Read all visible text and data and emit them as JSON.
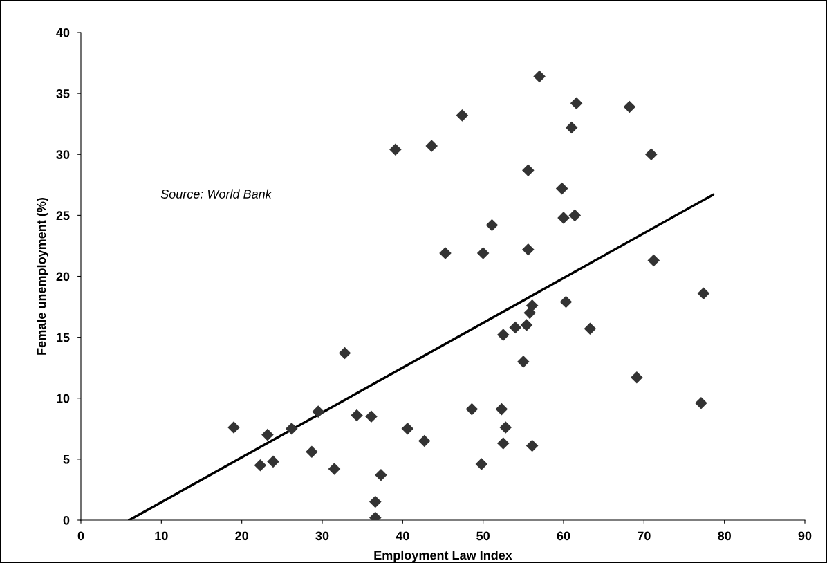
{
  "chart_data": {
    "type": "scatter",
    "xlabel": "Employment Law Index",
    "ylabel": "Female unemployment (%)",
    "annotations": [
      "Source: World Bank"
    ],
    "xlim": [
      0,
      90
    ],
    "xticks": [
      0,
      10,
      20,
      30,
      40,
      50,
      60,
      70,
      80,
      90
    ],
    "ylim": [
      0,
      40
    ],
    "yticks": [
      0,
      5,
      10,
      15,
      20,
      25,
      30,
      35,
      40
    ],
    "grid": false,
    "legend": false,
    "marker": "diamond",
    "series": [
      {
        "color": "#333333",
        "x": [
          19.0,
          22.3,
          23.2,
          23.9,
          26.2,
          28.7,
          29.5,
          31.5,
          32.8,
          34.3,
          36.1,
          36.6,
          36.6,
          37.3,
          39.1,
          40.6,
          42.7,
          43.6,
          45.3,
          47.4,
          48.6,
          49.8,
          50.0,
          51.1,
          52.3,
          52.5,
          52.5,
          52.8,
          54.0,
          55.0,
          55.4,
          55.6,
          55.6,
          55.8,
          56.1,
          56.1,
          57.0,
          59.8,
          60.0,
          60.3,
          61.0,
          61.4,
          61.6,
          63.3,
          68.2,
          69.1,
          70.9,
          71.2,
          77.1,
          77.4
        ],
        "values": [
          7.6,
          4.5,
          7.0,
          4.8,
          7.5,
          5.6,
          8.9,
          4.2,
          13.7,
          8.6,
          8.5,
          1.5,
          0.2,
          3.7,
          30.4,
          7.5,
          6.5,
          30.7,
          21.9,
          33.2,
          9.1,
          4.6,
          21.9,
          24.2,
          9.1,
          15.2,
          6.3,
          7.6,
          15.8,
          13.0,
          16.0,
          28.7,
          22.2,
          17.0,
          17.6,
          6.1,
          36.4,
          27.2,
          24.8,
          17.9,
          32.2,
          25.0,
          34.2,
          15.7,
          33.9,
          11.7,
          30.0,
          21.3,
          9.6,
          18.6
        ]
      },
      {
        "type": "line",
        "color": "#000000",
        "marker": "none",
        "line_style": "solid",
        "x": [
          6.0,
          78.6
        ],
        "values": [
          0,
          26.7
        ]
      }
    ]
  }
}
